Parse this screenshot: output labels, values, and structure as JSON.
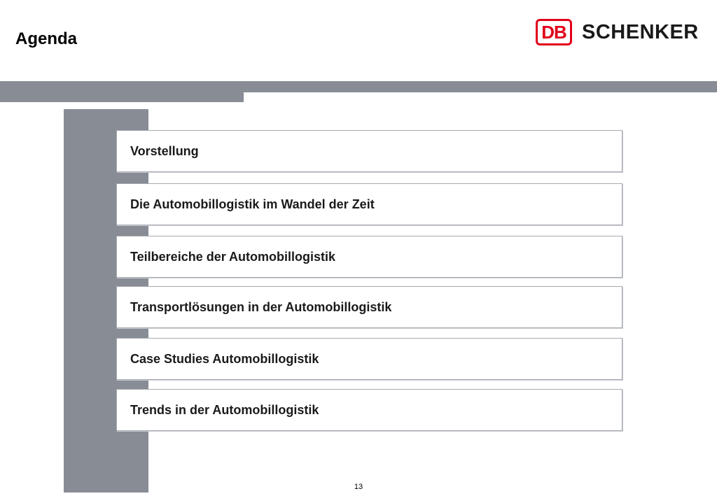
{
  "header": {
    "title": "Agenda",
    "logo": {
      "mark": "DB",
      "wordmark": "SCHENKER",
      "mark_color": "#e2001a"
    }
  },
  "agenda": {
    "items": [
      {
        "label": "Vorstellung"
      },
      {
        "label": "Die Automobillogistik im Wandel der Zeit"
      },
      {
        "label": "Teilbereiche der Automobillogistik"
      },
      {
        "label": "Transportlösungen in der Automobillogistik"
      },
      {
        "label": "Case Studies Automobillogistik"
      },
      {
        "label": "Trends in der Automobillogistik"
      }
    ]
  },
  "footer": {
    "page_number": "13"
  },
  "colors": {
    "bar": "#878c95",
    "accent": "#e2001a"
  }
}
